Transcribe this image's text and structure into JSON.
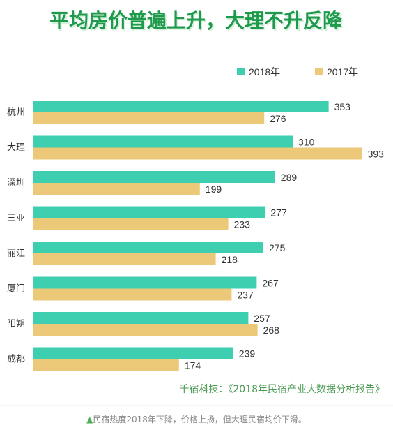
{
  "chart_data": {
    "type": "bar",
    "orientation": "horizontal",
    "title": "平均房价普遍上升，大理不升反降",
    "categories": [
      "杭州",
      "大理",
      "深圳",
      "三亚",
      "丽江",
      "厦门",
      "阳朔",
      "成都"
    ],
    "series": [
      {
        "name": "2018年",
        "color": "#3dcfb0",
        "values": [
          353,
          310,
          289,
          277,
          275,
          267,
          257,
          239
        ]
      },
      {
        "name": "2017年",
        "color": "#ecc978",
        "values": [
          276,
          393,
          199,
          233,
          218,
          237,
          268,
          174
        ]
      }
    ],
    "xlim": [
      0,
      400
    ],
    "grid": false,
    "legend_position": "top-right"
  },
  "source": "千宿科技：《2018年民宿产业大数据分析报告》",
  "caption": {
    "marker": "▲",
    "marker_color": "#4caf50",
    "text": "民宿热度2018年下降，价格上扬，但大理民宿均价下滑。"
  },
  "colors": {
    "title": "#1f9a4c",
    "title_shadow": "#d4f0dc"
  }
}
